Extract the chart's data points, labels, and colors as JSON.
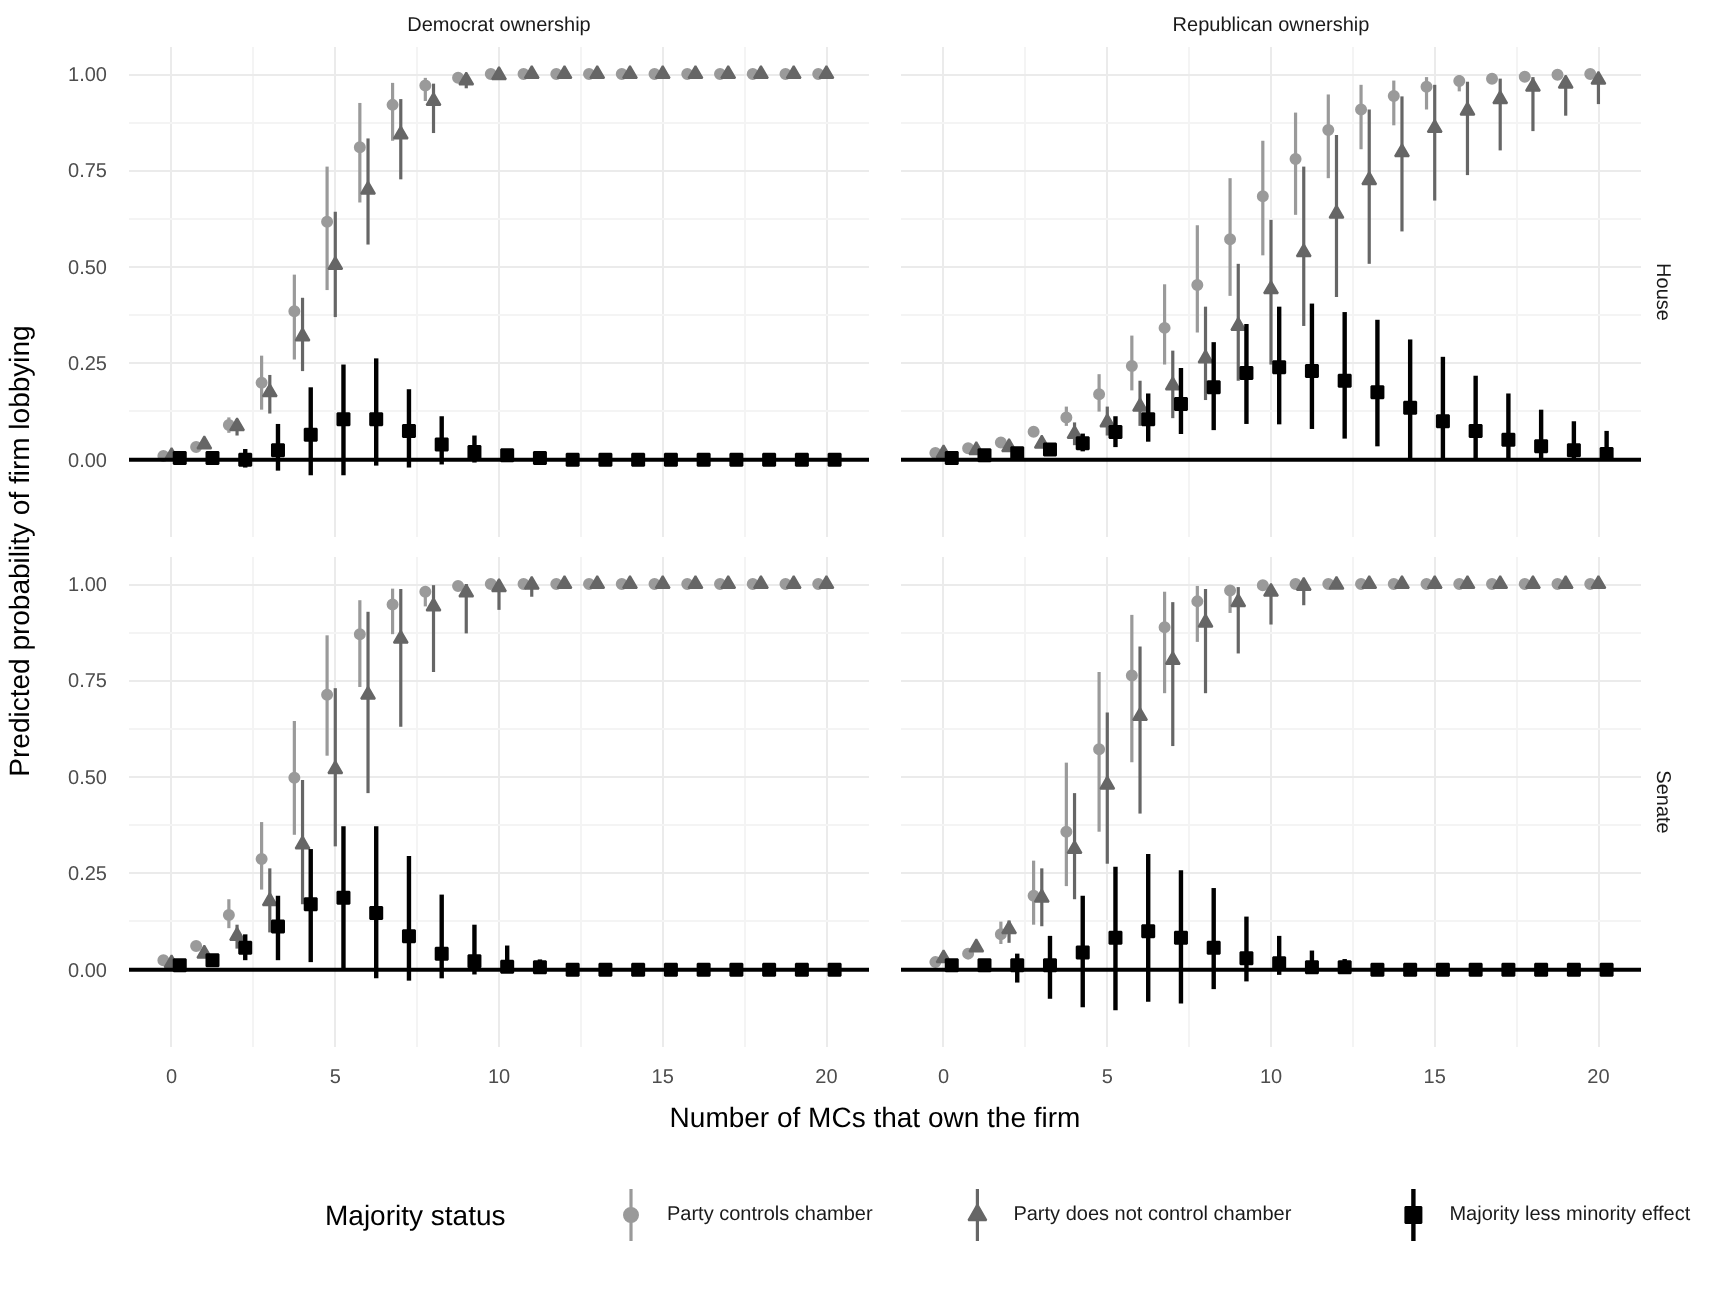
{
  "chart_data": [
    {
      "type": "scatter",
      "title": "Democrat ownership",
      "ylabel": "Predicted probability of firm lobbying",
      "xlim": [
        -1.3,
        21.3
      ],
      "ylim": [
        -0.2,
        1.07
      ],
      "xticks": [
        0,
        5,
        10,
        15,
        20
      ],
      "yticks": [
        {
          "value": 0,
          "label": "0.00"
        },
        {
          "value": 0.25,
          "label": "0.25"
        },
        {
          "value": 0.5,
          "label": "0.50"
        },
        {
          "value": 0.75,
          "label": "0.75"
        },
        {
          "value": 1,
          "label": "1.00"
        }
      ],
      "grid": true,
      "tick_labels": "y",
      "ref_lines": [
        {
          "axis": "y",
          "value": 0,
          "color": "#000000"
        }
      ],
      "series": [
        {
          "color": "#9a9a9a",
          "marker": "circle",
          "x": [
            -0.25,
            0.75,
            1.75,
            2.75,
            3.75,
            4.75,
            5.75,
            6.75,
            7.75,
            8.75,
            9.75,
            10.75,
            11.75,
            12.75,
            13.75,
            14.75,
            15.75,
            16.75,
            17.75,
            18.75,
            19.75
          ],
          "values": [
            0.01,
            0.033,
            0.09,
            0.2,
            0.385,
            0.617,
            0.81,
            0.92,
            0.97,
            0.99,
            1,
            1,
            1,
            1,
            1,
            1,
            1,
            1,
            1,
            1,
            1
          ],
          "errors": [
            null,
            null,
            [
              0.07,
              0.11
            ],
            [
              0.13,
              0.27
            ],
            [
              0.26,
              0.48
            ],
            [
              0.44,
              0.76
            ],
            [
              0.667,
              0.925
            ],
            [
              0.827,
              0.977
            ],
            [
              0.93,
              0.99
            ],
            null,
            null,
            null,
            null,
            null,
            null,
            null,
            null,
            null,
            null,
            null,
            null
          ]
        },
        {
          "color": "#666666",
          "marker": "triangle",
          "x": [
            0,
            1,
            2,
            3,
            4,
            5,
            6,
            7,
            8,
            9,
            10,
            11,
            12,
            13,
            14,
            15,
            16,
            17,
            18,
            19,
            20
          ],
          "values": [
            0.01,
            0.04,
            0.087,
            0.175,
            0.32,
            0.505,
            0.7,
            0.843,
            0.93,
            0.983,
            0.997,
            1,
            1,
            1,
            1,
            1,
            1,
            1,
            1,
            1,
            1
          ],
          "errors": [
            null,
            null,
            [
              0.063,
              0.105
            ],
            [
              0.12,
              0.22
            ],
            [
              0.23,
              0.42
            ],
            [
              0.37,
              0.643
            ],
            [
              0.558,
              0.833
            ],
            [
              0.727,
              0.935
            ],
            [
              0.847,
              0.975
            ],
            [
              0.963,
              0.997
            ],
            null,
            null,
            null,
            null,
            null,
            null,
            null,
            null,
            null,
            null,
            null
          ]
        },
        {
          "color": "#000000",
          "marker": "square",
          "x": [
            0.25,
            1.25,
            2.25,
            3.25,
            4.25,
            5.25,
            6.25,
            7.25,
            8.25,
            9.25,
            10.25,
            11.25,
            12.25,
            13.25,
            14.25,
            15.25,
            16.25,
            17.25,
            18.25,
            19.25,
            20.25
          ],
          "values": [
            0.005,
            0.005,
            0,
            0.025,
            0.065,
            0.105,
            0.105,
            0.075,
            0.04,
            0.02,
            0.012,
            0.005,
            0,
            0,
            0,
            0,
            0,
            0,
            0,
            0,
            0
          ],
          "errors": [
            null,
            null,
            [
              -0.02,
              0.028
            ],
            [
              -0.028,
              0.093
            ],
            [
              -0.04,
              0.188
            ],
            [
              -0.04,
              0.247
            ],
            [
              -0.015,
              0.263
            ],
            [
              -0.02,
              0.183
            ],
            [
              -0.012,
              0.113
            ],
            [
              -0.007,
              0.063
            ],
            [
              0,
              0.025
            ],
            null,
            null,
            null,
            null,
            null,
            null,
            null,
            null,
            null,
            null
          ]
        }
      ]
    },
    {
      "type": "scatter",
      "title": "Republican ownership",
      "y2label": "House",
      "xlim": [
        -1.3,
        21.3
      ],
      "ylim": [
        -0.2,
        1.07
      ],
      "xticks": [
        0,
        5,
        10,
        15,
        20
      ],
      "yticks": [
        0,
        0.25,
        0.5,
        0.75,
        1
      ],
      "grid": true,
      "tick_labels": false,
      "ref_lines": [
        {
          "axis": "y",
          "value": 0,
          "color": "#000000"
        }
      ],
      "series": [
        {
          "color": "#9a9a9a",
          "marker": "circle",
          "x": [
            -0.25,
            0.75,
            1.75,
            2.75,
            3.75,
            4.75,
            5.75,
            6.75,
            7.75,
            8.75,
            9.75,
            10.75,
            11.75,
            12.75,
            13.75,
            14.75,
            15.75,
            16.75,
            17.75,
            18.75,
            19.75
          ],
          "values": [
            0.018,
            0.03,
            0.045,
            0.073,
            0.11,
            0.17,
            0.243,
            0.342,
            0.453,
            0.572,
            0.683,
            0.78,
            0.855,
            0.908,
            0.943,
            0.967,
            0.982,
            0.988,
            0.993,
            0.998,
            1
          ],
          "errors": [
            null,
            null,
            null,
            null,
            [
              0.088,
              0.138
            ],
            [
              0.125,
              0.222
            ],
            [
              0.18,
              0.322
            ],
            [
              0.247,
              0.455
            ],
            [
              0.33,
              0.608
            ],
            [
              0.425,
              0.73
            ],
            [
              0.53,
              0.827
            ],
            [
              0.635,
              0.9
            ],
            [
              0.73,
              0.947
            ],
            [
              0.805,
              0.972
            ],
            [
              0.867,
              0.983
            ],
            [
              0.908,
              0.992
            ],
            [
              0.955,
              0.997
            ],
            null,
            null,
            null,
            null
          ]
        },
        {
          "color": "#666666",
          "marker": "triangle",
          "x": [
            0,
            1,
            2,
            3,
            4,
            5,
            6,
            7,
            8,
            9,
            10,
            11,
            12,
            13,
            14,
            15,
            16,
            17,
            18,
            19,
            20
          ],
          "values": [
            0.017,
            0.025,
            0.033,
            0.042,
            0.067,
            0.097,
            0.138,
            0.193,
            0.263,
            0.347,
            0.442,
            0.538,
            0.638,
            0.725,
            0.797,
            0.86,
            0.905,
            0.935,
            0.967,
            0.975,
            0.985
          ],
          "errors": [
            null,
            null,
            null,
            null,
            [
              0.038,
              0.097
            ],
            [
              0.063,
              0.138
            ],
            [
              0.088,
              0.205
            ],
            [
              0.108,
              0.283
            ],
            [
              0.155,
              0.397
            ],
            [
              0.205,
              0.508
            ],
            [
              0.247,
              0.622
            ],
            [
              0.347,
              0.76
            ],
            [
              0.422,
              0.842
            ],
            [
              0.508,
              0.908
            ],
            [
              0.592,
              0.942
            ],
            [
              0.672,
              0.972
            ],
            [
              0.738,
              0.98
            ],
            [
              0.802,
              0.988
            ],
            [
              0.852,
              0.992
            ],
            [
              0.892,
              0.992
            ],
            [
              0.922,
              0.997
            ]
          ]
        },
        {
          "color": "#000000",
          "marker": "square",
          "x": [
            0.25,
            1.25,
            2.25,
            3.25,
            4.25,
            5.25,
            6.25,
            7.25,
            8.25,
            9.25,
            10.25,
            11.25,
            12.25,
            13.25,
            14.25,
            15.25,
            16.25,
            17.25,
            18.25,
            19.25,
            20.25
          ],
          "values": [
            0.005,
            0.012,
            0.017,
            0.027,
            0.043,
            0.072,
            0.105,
            0.145,
            0.188,
            0.225,
            0.24,
            0.23,
            0.205,
            0.175,
            0.135,
            0.1,
            0.075,
            0.052,
            0.035,
            0.025,
            0.015
          ],
          "errors": [
            null,
            null,
            null,
            [
              0.013,
              0.035
            ],
            [
              0.022,
              0.068
            ],
            [
              0.033,
              0.113
            ],
            [
              0.047,
              0.172
            ],
            [
              0.067,
              0.238
            ],
            [
              0.077,
              0.305
            ],
            [
              0.093,
              0.352
            ],
            [
              0.092,
              0.397
            ],
            [
              0.08,
              0.405
            ],
            [
              0.055,
              0.383
            ],
            [
              0.035,
              0.363
            ],
            [
              0,
              0.312
            ],
            [
              0,
              0.267
            ],
            [
              0,
              0.218
            ],
            [
              0,
              0.172
            ],
            [
              0,
              0.13
            ],
            [
              0,
              0.1
            ],
            [
              0,
              0.075
            ]
          ]
        }
      ]
    },
    {
      "type": "scatter",
      "xlabel": "Number of MCs that own the firm",
      "legend": "bottom",
      "legend_title": "Majority status",
      "xlim": [
        -1.3,
        21.3
      ],
      "ylim": [
        -0.2,
        1.07
      ],
      "xticks": [
        0,
        5,
        10,
        15,
        20
      ],
      "yticks": [
        {
          "value": 0,
          "label": "0.00"
        },
        {
          "value": 0.25,
          "label": "0.25"
        },
        {
          "value": 0.5,
          "label": "0.50"
        },
        {
          "value": 0.75,
          "label": "0.75"
        },
        {
          "value": 1,
          "label": "1.00"
        }
      ],
      "grid": true,
      "ref_lines": [
        {
          "axis": "y",
          "value": 0,
          "color": "#000000"
        }
      ],
      "series": [
        {
          "name": "Party controls chamber",
          "color": "#9a9a9a",
          "marker": "circle",
          "x": [
            -0.25,
            0.75,
            1.75,
            2.75,
            3.75,
            4.75,
            5.75,
            6.75,
            7.75,
            8.75,
            9.75,
            10.75,
            11.75,
            12.75,
            13.75,
            14.75,
            15.75,
            16.75,
            17.75,
            18.75,
            19.75
          ],
          "values": [
            0.025,
            0.062,
            0.142,
            0.287,
            0.498,
            0.713,
            0.87,
            0.947,
            0.98,
            0.995,
            1,
            1,
            1,
            1,
            1,
            1,
            1,
            1,
            1,
            1,
            1
          ],
          "errors": [
            null,
            null,
            [
              0.108,
              0.183
            ],
            [
              0.208,
              0.383
            ],
            [
              0.35,
              0.645
            ],
            [
              0.555,
              0.867
            ],
            [
              0.733,
              0.958
            ],
            [
              0.87,
              0.988
            ],
            [
              0.942,
              0.995
            ],
            null,
            null,
            null,
            null,
            null,
            null,
            null,
            null,
            null,
            null,
            null,
            null
          ]
        },
        {
          "name": "Party does not control chamber",
          "color": "#666666",
          "marker": "triangle",
          "x": [
            0,
            1,
            2,
            3,
            4,
            5,
            6,
            7,
            8,
            9,
            10,
            11,
            12,
            13,
            14,
            15,
            16,
            17,
            18,
            19,
            20
          ],
          "values": [
            0.017,
            0.042,
            0.088,
            0.178,
            0.325,
            0.52,
            0.713,
            0.858,
            0.942,
            0.978,
            0.992,
            0.998,
            1,
            1,
            1,
            1,
            1,
            1,
            1,
            1,
            1
          ],
          "errors": [
            null,
            null,
            [
              0.055,
              0.117
            ],
            [
              0.097,
              0.263
            ],
            [
              0.17,
              0.492
            ],
            [
              0.32,
              0.73
            ],
            [
              0.458,
              0.928
            ],
            [
              0.63,
              0.987
            ],
            [
              0.772,
              0.997
            ],
            [
              0.872,
              1
            ],
            [
              0.933,
              1
            ],
            [
              0.967,
              1
            ],
            null,
            null,
            null,
            null,
            null,
            null,
            null,
            null,
            null
          ]
        },
        {
          "name": "Majority less minority effect",
          "color": "#000000",
          "marker": "square",
          "x": [
            0.25,
            1.25,
            2.25,
            3.25,
            4.25,
            5.25,
            6.25,
            7.25,
            8.25,
            9.25,
            10.25,
            11.25,
            12.25,
            13.25,
            14.25,
            15.25,
            16.25,
            17.25,
            18.25,
            19.25,
            20.25
          ],
          "values": [
            0.012,
            0.025,
            0.057,
            0.112,
            0.17,
            0.187,
            0.147,
            0.087,
            0.042,
            0.022,
            0.008,
            0.007,
            0,
            0,
            0,
            0,
            0,
            0,
            0,
            0,
            0
          ],
          "errors": [
            null,
            null,
            [
              0.025,
              0.092
            ],
            [
              0.025,
              0.192
            ],
            [
              0.02,
              0.313
            ],
            [
              0,
              0.372
            ],
            [
              -0.022,
              0.372
            ],
            [
              -0.028,
              0.295
            ],
            [
              -0.022,
              0.195
            ],
            [
              -0.012,
              0.117
            ],
            [
              -0.005,
              0.063
            ],
            [
              -0.003,
              0.027
            ],
            null,
            null,
            null,
            null,
            null,
            null,
            null,
            null,
            null
          ]
        }
      ]
    },
    {
      "type": "scatter",
      "y2label": "Senate",
      "xlim": [
        -1.3,
        21.3
      ],
      "ylim": [
        -0.2,
        1.07
      ],
      "xticks": [
        0,
        5,
        10,
        15,
        20
      ],
      "yticks": [
        0,
        0.25,
        0.5,
        0.75,
        1
      ],
      "grid": true,
      "tick_labels": "x",
      "ref_lines": [
        {
          "axis": "y",
          "value": 0,
          "color": "#000000"
        }
      ],
      "series": [
        {
          "color": "#9a9a9a",
          "marker": "circle",
          "x": [
            -0.25,
            0.75,
            1.75,
            2.75,
            3.75,
            4.75,
            5.75,
            6.75,
            7.75,
            8.75,
            9.75,
            10.75,
            11.75,
            12.75,
            13.75,
            14.75,
            15.75,
            16.75,
            17.75,
            18.75,
            19.75
          ],
          "values": [
            0.02,
            0.042,
            0.092,
            0.192,
            0.358,
            0.572,
            0.763,
            0.888,
            0.955,
            0.983,
            0.997,
            1,
            1,
            1,
            1,
            1,
            1,
            1,
            1,
            1,
            1
          ],
          "errors": [
            null,
            null,
            [
              0.067,
              0.125
            ],
            [
              0.117,
              0.283
            ],
            [
              0.217,
              0.537
            ],
            [
              0.358,
              0.772
            ],
            [
              0.538,
              0.92
            ],
            [
              0.717,
              0.98
            ],
            [
              0.85,
              0.995
            ],
            [
              0.925,
              0.997
            ],
            null,
            null,
            null,
            null,
            null,
            null,
            null,
            null,
            null,
            null,
            null
          ]
        },
        {
          "color": "#666666",
          "marker": "triangle",
          "x": [
            0,
            1,
            2,
            3,
            4,
            5,
            6,
            7,
            8,
            9,
            10,
            11,
            12,
            13,
            14,
            15,
            16,
            17,
            18,
            19,
            20
          ],
          "values": [
            0.03,
            0.058,
            0.105,
            0.187,
            0.313,
            0.48,
            0.658,
            0.803,
            0.9,
            0.953,
            0.98,
            0.995,
            0.998,
            1,
            1,
            1,
            1,
            1,
            1,
            1,
            1
          ],
          "errors": [
            null,
            null,
            [
              0.07,
              0.128
            ],
            [
              0.113,
              0.263
            ],
            [
              0.183,
              0.458
            ],
            [
              0.275,
              0.667
            ],
            [
              0.405,
              0.838
            ],
            [
              0.58,
              0.953
            ],
            [
              0.717,
              0.987
            ],
            [
              0.82,
              0.992
            ],
            [
              0.895,
              0.995
            ],
            [
              0.945,
              1
            ],
            null,
            null,
            null,
            null,
            null,
            null,
            null,
            null,
            null
          ]
        },
        {
          "color": "#000000",
          "marker": "square",
          "x": [
            0.25,
            1.25,
            2.25,
            3.25,
            4.25,
            5.25,
            6.25,
            7.25,
            8.25,
            9.25,
            10.25,
            11.25,
            12.25,
            13.25,
            14.25,
            15.25,
            16.25,
            17.25,
            18.25,
            19.25,
            20.25
          ],
          "values": [
            0.012,
            0.012,
            0.012,
            0.012,
            0.045,
            0.083,
            0.1,
            0.083,
            0.057,
            0.03,
            0.017,
            0.007,
            0.007,
            0,
            0,
            0,
            0,
            0,
            0,
            0,
            0
          ],
          "errors": [
            null,
            null,
            [
              -0.033,
              0.042
            ],
            [
              -0.075,
              0.088
            ],
            [
              -0.097,
              0.192
            ],
            [
              -0.105,
              0.267
            ],
            [
              -0.083,
              0.3
            ],
            [
              -0.087,
              0.258
            ],
            [
              -0.05,
              0.212
            ],
            [
              -0.03,
              0.138
            ],
            [
              -0.013,
              0.088
            ],
            [
              -0.008,
              0.05
            ],
            [
              -0.005,
              0.028
            ],
            null,
            null,
            null,
            null,
            null,
            null,
            null,
            null
          ]
        }
      ]
    }
  ]
}
